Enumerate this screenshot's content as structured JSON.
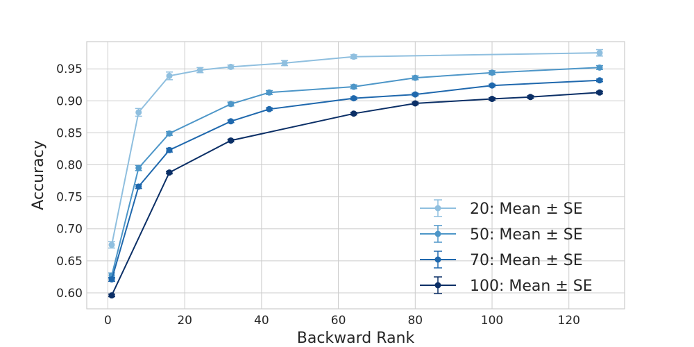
{
  "chart_data": {
    "type": "line",
    "title": "",
    "xlabel": "Backward Rank",
    "ylabel": "Accuracy",
    "xlim": [
      -5.5,
      134.5
    ],
    "ylim": [
      0.575,
      0.9925
    ],
    "xticks": [
      0,
      20,
      40,
      60,
      80,
      100,
      120
    ],
    "yticks": [
      0.6,
      0.65,
      0.7,
      0.75,
      0.8,
      0.85,
      0.9,
      0.95
    ],
    "xtick_labels": [
      "0",
      "20",
      "40",
      "60",
      "80",
      "100",
      "120"
    ],
    "ytick_labels": [
      "0.60",
      "0.65",
      "0.70",
      "0.75",
      "0.80",
      "0.85",
      "0.90",
      "0.95"
    ],
    "grid": true,
    "legend_position": "bottom-right",
    "error_bars": "Mean ± SE",
    "series": [
      {
        "name": "20: Mean ± SE",
        "color": "#8fbfdf",
        "x": [
          1,
          8,
          16,
          24,
          32,
          46,
          64,
          128
        ],
        "y": [
          0.675,
          0.882,
          0.939,
          0.948,
          0.953,
          0.959,
          0.969,
          0.975
        ],
        "se": [
          0.005,
          0.006,
          0.006,
          0.004,
          0.003,
          0.004,
          0.003,
          0.005
        ]
      },
      {
        "name": "50: Mean ± SE",
        "color": "#4d96c8",
        "x": [
          1,
          8,
          16,
          32,
          42,
          64,
          80,
          100,
          128
        ],
        "y": [
          0.627,
          0.795,
          0.849,
          0.895,
          0.913,
          0.922,
          0.936,
          0.944,
          0.952
        ],
        "se": [
          0.004,
          0.004,
          0.003,
          0.003,
          0.003,
          0.003,
          0.003,
          0.003,
          0.003
        ]
      },
      {
        "name": "70: Mean ± SE",
        "color": "#1f68ad",
        "x": [
          1,
          8,
          16,
          32,
          42,
          64,
          80,
          100,
          128
        ],
        "y": [
          0.621,
          0.766,
          0.823,
          0.868,
          0.887,
          0.904,
          0.91,
          0.924,
          0.932
        ],
        "se": [
          0.003,
          0.003,
          0.003,
          0.002,
          0.002,
          0.002,
          0.002,
          0.002,
          0.002
        ]
      },
      {
        "name": "100: Mean ± SE",
        "color": "#0b2f66",
        "x": [
          1,
          16,
          32,
          64,
          80,
          100,
          110,
          128
        ],
        "y": [
          0.596,
          0.788,
          0.838,
          0.88,
          0.896,
          0.903,
          0.906,
          0.913
        ],
        "se": [
          0.002,
          0.002,
          0.002,
          0.002,
          0.002,
          0.002,
          0.002,
          0.002
        ]
      }
    ]
  }
}
